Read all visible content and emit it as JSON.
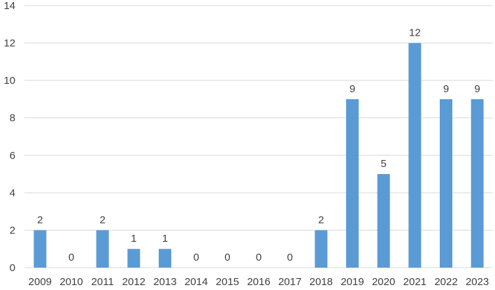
{
  "chart_data": {
    "type": "bar",
    "categories": [
      "2009",
      "2010",
      "2011",
      "2012",
      "2013",
      "2014",
      "2015",
      "2016",
      "2017",
      "2018",
      "2019",
      "2020",
      "2021",
      "2022",
      "2023"
    ],
    "values": [
      2,
      0,
      2,
      1,
      1,
      0,
      0,
      0,
      0,
      2,
      9,
      5,
      12,
      9,
      9
    ],
    "data_labels": [
      "2",
      "0",
      "2",
      "1",
      "1",
      "0",
      "0",
      "0",
      "0",
      "2",
      "9",
      "5",
      "12",
      "9",
      "9"
    ],
    "ylim": [
      0,
      14
    ],
    "yticks": [
      "0",
      "2",
      "4",
      "6",
      "8",
      "10",
      "12",
      "14"
    ],
    "grid": true,
    "legend": "none",
    "bar_color": "#5b9bd5",
    "grid_color": "#d9d9d9",
    "text_color": "#404040"
  }
}
